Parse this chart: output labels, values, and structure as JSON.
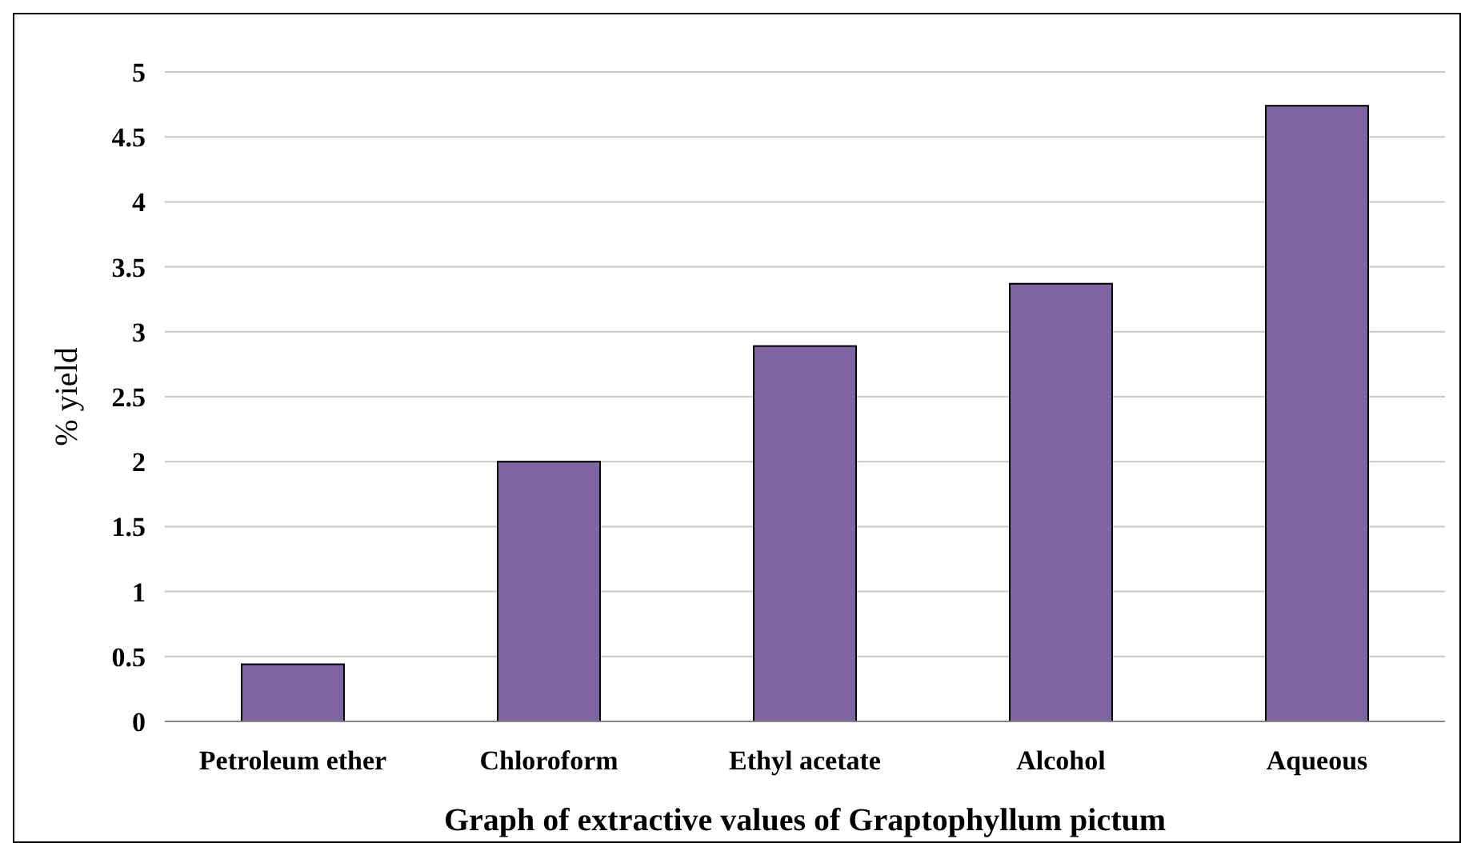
{
  "chart_data": {
    "type": "bar",
    "xlabel": "Graph  of extractive values of Graptophyllum pictum",
    "ylabel": "% yield",
    "categories": [
      "Petroleum ether",
      "Chloroform",
      "Ethyl acetate",
      "Alcohol",
      "Aqueous"
    ],
    "values": [
      0.44,
      2.0,
      2.89,
      3.37,
      4.74
    ],
    "color": "#8064a2",
    "ylim": [
      0,
      5
    ],
    "yticks": [
      0,
      0.5,
      1,
      1.5,
      2,
      2.5,
      3,
      3.5,
      4,
      4.5,
      5
    ],
    "grid": "y"
  }
}
